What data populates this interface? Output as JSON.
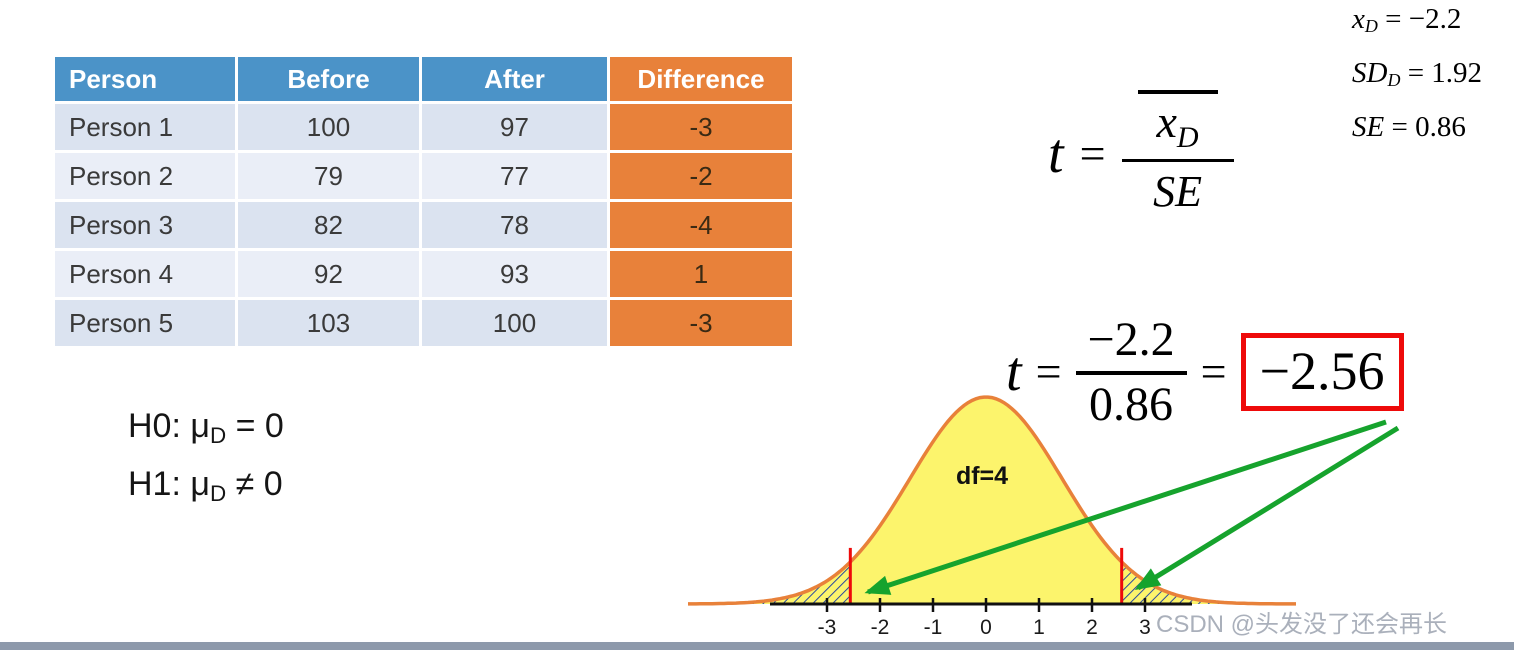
{
  "table": {
    "headers": [
      "Person",
      "Before",
      "After",
      "Difference"
    ],
    "rows": [
      [
        "Person 1",
        "100",
        "97",
        "-3"
      ],
      [
        "Person 2",
        "79",
        "77",
        "-2"
      ],
      [
        "Person 3",
        "82",
        "78",
        "-4"
      ],
      [
        "Person 4",
        "92",
        "93",
        "1"
      ],
      [
        "Person 5",
        "103",
        "100",
        "-3"
      ]
    ]
  },
  "hypotheses": {
    "h0": {
      "pre": "H0: μ",
      "sub": "D",
      "post": " = 0"
    },
    "h1": {
      "pre": "H1: μ",
      "sub": "D",
      "post": " ≠ 0"
    }
  },
  "stats": {
    "xbar": {
      "v": "x",
      "sub": "D",
      "rest": " = −2.2"
    },
    "sd": {
      "v": "SD",
      "sub": "D",
      "rest": " = 1.92"
    },
    "se": {
      "v": "SE",
      "rest": " = 0.86"
    }
  },
  "formula1": {
    "t": "t",
    "eq": "=",
    "num_var": "x",
    "num_sub": "D",
    "den": "SE"
  },
  "formula2": {
    "t": "t",
    "eq1": "=",
    "num": "−2.2",
    "den": "0.86",
    "eq2": "=",
    "result": "−2.56"
  },
  "curve": {
    "df_label": "df=4",
    "ticks": [
      "-3",
      "-2",
      "-1",
      "0",
      "1",
      "2",
      "3"
    ]
  },
  "watermark": "CSDN @头发没了还会再长",
  "colors": {
    "header_blue": "#4b93c8",
    "accent_orange": "#e8813a",
    "curve_yellow": "#fcf46c",
    "critical_red": "#ee0a0a",
    "arrow_green": "#16a32d"
  },
  "chart_data": {
    "type": "area",
    "description": "t-distribution bell curve with two shaded rejection tails",
    "df": 4,
    "x_ticks": [
      -3,
      -2,
      -1,
      0,
      1,
      2,
      3
    ],
    "critical_values": [
      -2.56,
      2.56
    ],
    "annotation": "df=4"
  }
}
